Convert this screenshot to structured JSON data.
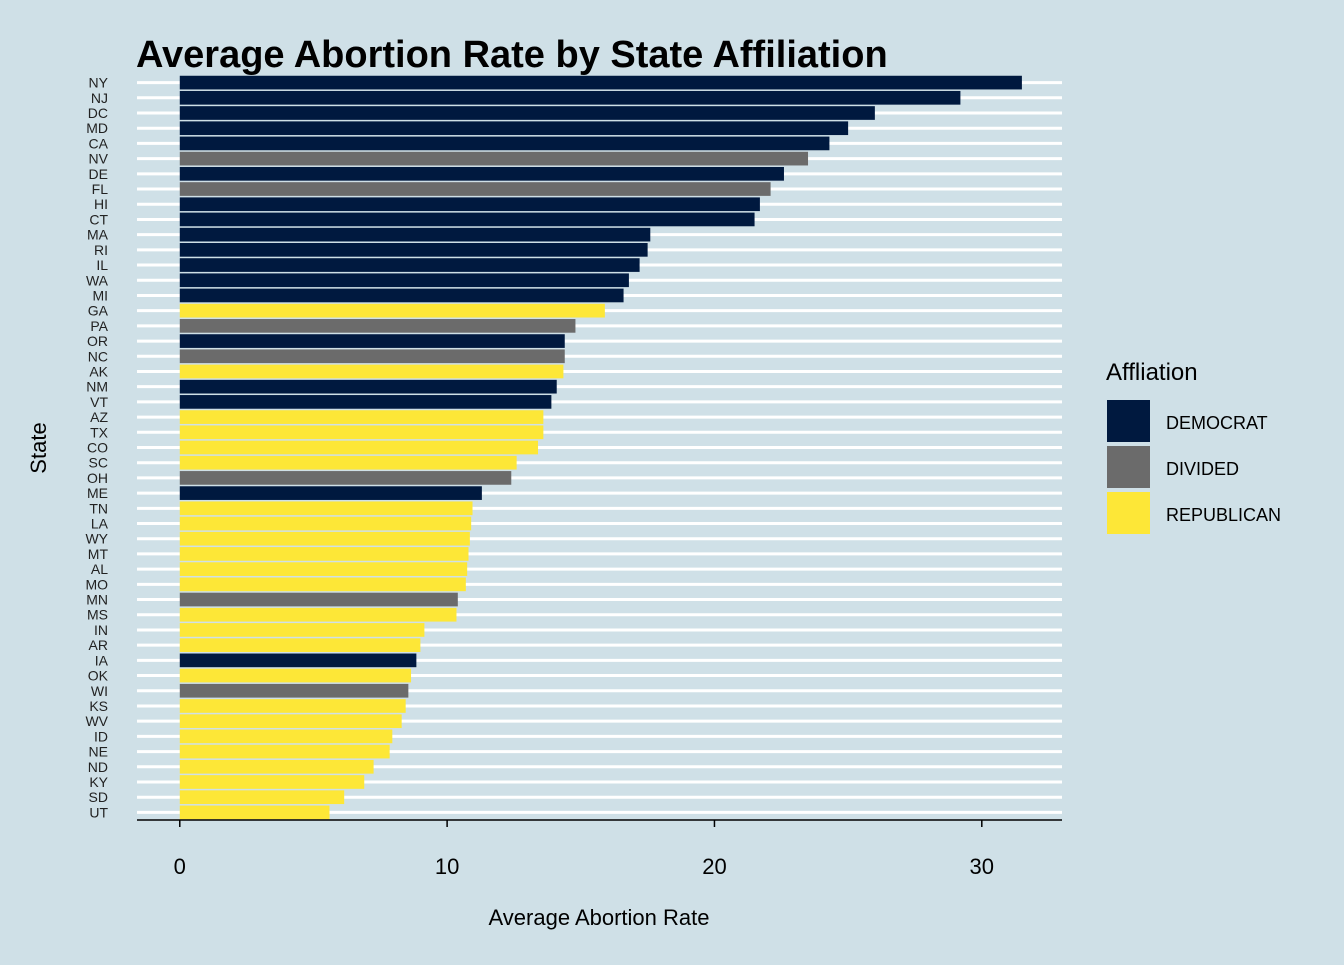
{
  "chart_data": {
    "type": "bar",
    "orientation": "horizontal",
    "title": "Average Abortion Rate by State Affiliation",
    "xlabel": "Average Abortion Rate",
    "ylabel": "State",
    "xlim": [
      -1.6,
      33
    ],
    "xticks": [
      0,
      10,
      20,
      30
    ],
    "grid": "horizontal",
    "legend": {
      "title": "Affliation",
      "position": "right",
      "entries": [
        {
          "label": "DEMOCRAT",
          "color": "#00193f"
        },
        {
          "label": "DIVIDED",
          "color": "#6b6b6b"
        },
        {
          "label": "REPUBLICAN",
          "color": "#fde737"
        }
      ]
    },
    "bars": [
      {
        "state": "NY",
        "value": 31.5,
        "affiliation": "DEMOCRAT"
      },
      {
        "state": "NJ",
        "value": 29.2,
        "affiliation": "DEMOCRAT"
      },
      {
        "state": "DC",
        "value": 26.0,
        "affiliation": "DEMOCRAT"
      },
      {
        "state": "MD",
        "value": 25.0,
        "affiliation": "DEMOCRAT"
      },
      {
        "state": "CA",
        "value": 24.3,
        "affiliation": "DEMOCRAT"
      },
      {
        "state": "NV",
        "value": 23.5,
        "affiliation": "DIVIDED"
      },
      {
        "state": "DE",
        "value": 22.6,
        "affiliation": "DEMOCRAT"
      },
      {
        "state": "FL",
        "value": 22.1,
        "affiliation": "DIVIDED"
      },
      {
        "state": "HI",
        "value": 21.7,
        "affiliation": "DEMOCRAT"
      },
      {
        "state": "CT",
        "value": 21.5,
        "affiliation": "DEMOCRAT"
      },
      {
        "state": "MA",
        "value": 17.6,
        "affiliation": "DEMOCRAT"
      },
      {
        "state": "RI",
        "value": 17.5,
        "affiliation": "DEMOCRAT"
      },
      {
        "state": "IL",
        "value": 17.2,
        "affiliation": "DEMOCRAT"
      },
      {
        "state": "WA",
        "value": 16.8,
        "affiliation": "DEMOCRAT"
      },
      {
        "state": "MI",
        "value": 16.6,
        "affiliation": "DEMOCRAT"
      },
      {
        "state": "GA",
        "value": 15.9,
        "affiliation": "REPUBLICAN"
      },
      {
        "state": "PA",
        "value": 14.8,
        "affiliation": "DIVIDED"
      },
      {
        "state": "OR",
        "value": 14.4,
        "affiliation": "DEMOCRAT"
      },
      {
        "state": "NC",
        "value": 14.4,
        "affiliation": "DIVIDED"
      },
      {
        "state": "AK",
        "value": 14.35,
        "affiliation": "REPUBLICAN"
      },
      {
        "state": "NM",
        "value": 14.1,
        "affiliation": "DEMOCRAT"
      },
      {
        "state": "VT",
        "value": 13.9,
        "affiliation": "DEMOCRAT"
      },
      {
        "state": "AZ",
        "value": 13.6,
        "affiliation": "REPUBLICAN"
      },
      {
        "state": "TX",
        "value": 13.6,
        "affiliation": "REPUBLICAN"
      },
      {
        "state": "CO",
        "value": 13.4,
        "affiliation": "REPUBLICAN"
      },
      {
        "state": "SC",
        "value": 12.6,
        "affiliation": "REPUBLICAN"
      },
      {
        "state": "OH",
        "value": 12.4,
        "affiliation": "DIVIDED"
      },
      {
        "state": "ME",
        "value": 11.3,
        "affiliation": "DEMOCRAT"
      },
      {
        "state": "TN",
        "value": 10.95,
        "affiliation": "REPUBLICAN"
      },
      {
        "state": "LA",
        "value": 10.9,
        "affiliation": "REPUBLICAN"
      },
      {
        "state": "WY",
        "value": 10.85,
        "affiliation": "REPUBLICAN"
      },
      {
        "state": "MT",
        "value": 10.8,
        "affiliation": "REPUBLICAN"
      },
      {
        "state": "AL",
        "value": 10.75,
        "affiliation": "REPUBLICAN"
      },
      {
        "state": "MO",
        "value": 10.7,
        "affiliation": "REPUBLICAN"
      },
      {
        "state": "MN",
        "value": 10.4,
        "affiliation": "DIVIDED"
      },
      {
        "state": "MS",
        "value": 10.35,
        "affiliation": "REPUBLICAN"
      },
      {
        "state": "IN",
        "value": 9.15,
        "affiliation": "REPUBLICAN"
      },
      {
        "state": "AR",
        "value": 9.0,
        "affiliation": "REPUBLICAN"
      },
      {
        "state": "IA",
        "value": 8.85,
        "affiliation": "DEMOCRAT"
      },
      {
        "state": "OK",
        "value": 8.65,
        "affiliation": "REPUBLICAN"
      },
      {
        "state": "WI",
        "value": 8.55,
        "affiliation": "DIVIDED"
      },
      {
        "state": "KS",
        "value": 8.45,
        "affiliation": "REPUBLICAN"
      },
      {
        "state": "WV",
        "value": 8.3,
        "affiliation": "REPUBLICAN"
      },
      {
        "state": "ID",
        "value": 7.95,
        "affiliation": "REPUBLICAN"
      },
      {
        "state": "NE",
        "value": 7.85,
        "affiliation": "REPUBLICAN"
      },
      {
        "state": "ND",
        "value": 7.25,
        "affiliation": "REPUBLICAN"
      },
      {
        "state": "KY",
        "value": 6.9,
        "affiliation": "REPUBLICAN"
      },
      {
        "state": "SD",
        "value": 6.15,
        "affiliation": "REPUBLICAN"
      },
      {
        "state": "UT",
        "value": 5.6,
        "affiliation": "REPUBLICAN"
      }
    ]
  }
}
